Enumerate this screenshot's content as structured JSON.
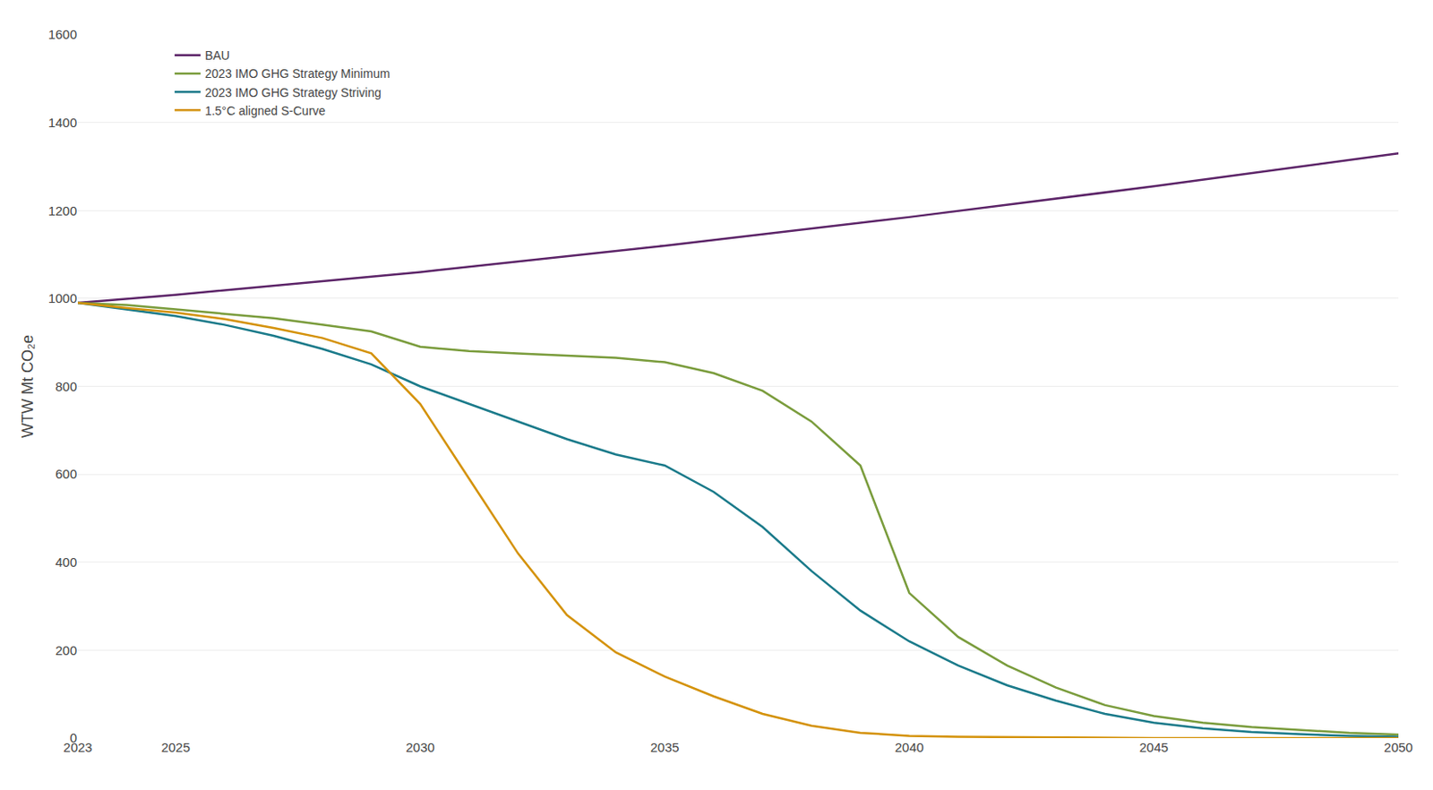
{
  "chart_data": {
    "type": "line",
    "y_label": "WTW Mt CO₂e",
    "xlim": [
      2023,
      2050
    ],
    "ylim": [
      0,
      1600
    ],
    "xticks": [
      2023,
      2025,
      2030,
      2035,
      2040,
      2045,
      2050
    ],
    "yticks": [
      0,
      200,
      400,
      600,
      800,
      1000,
      1200,
      1400,
      1600
    ],
    "grid": "y",
    "legend": "upper left",
    "series": [
      {
        "name": "BAU",
        "color": "#5c2468",
        "x": [
          2023,
          2025,
          2030,
          2035,
          2040,
          2045,
          2050
        ],
        "values": [
          990,
          1008,
          1060,
          1120,
          1185,
          1255,
          1330
        ]
      },
      {
        "name": "2023 IMO GHG Strategy Minimum",
        "color": "#7a9c3c",
        "x": [
          2023,
          2024,
          2025,
          2026,
          2027,
          2028,
          2029,
          2030,
          2031,
          2032,
          2033,
          2034,
          2035,
          2036,
          2037,
          2038,
          2039,
          2040,
          2041,
          2042,
          2043,
          2044,
          2045,
          2046,
          2047,
          2048,
          2049,
          2050
        ],
        "values": [
          990,
          985,
          975,
          965,
          955,
          940,
          925,
          890,
          880,
          875,
          870,
          865,
          855,
          830,
          790,
          720,
          620,
          330,
          230,
          165,
          115,
          75,
          50,
          35,
          25,
          18,
          12,
          8
        ]
      },
      {
        "name": "2023 IMO GHG Strategy Striving",
        "color": "#1a7a8a",
        "x": [
          2023,
          2024,
          2025,
          2026,
          2027,
          2028,
          2029,
          2030,
          2031,
          2032,
          2033,
          2034,
          2035,
          2036,
          2037,
          2038,
          2039,
          2040,
          2041,
          2042,
          2043,
          2044,
          2045,
          2046,
          2047,
          2048,
          2049,
          2050
        ],
        "values": [
          990,
          975,
          960,
          940,
          915,
          885,
          850,
          800,
          760,
          720,
          680,
          645,
          620,
          560,
          480,
          380,
          290,
          220,
          165,
          120,
          85,
          55,
          35,
          22,
          14,
          9,
          5,
          3
        ]
      },
      {
        "name": "1.5°C aligned S-Curve",
        "color": "#d4920a",
        "x": [
          2023,
          2024,
          2025,
          2026,
          2027,
          2028,
          2029,
          2030,
          2031,
          2032,
          2033,
          2034,
          2035,
          2036,
          2037,
          2038,
          2039,
          2040,
          2041,
          2042,
          2043,
          2044,
          2045,
          2050
        ],
        "values": [
          990,
          978,
          968,
          953,
          933,
          910,
          875,
          760,
          590,
          420,
          280,
          195,
          140,
          95,
          55,
          28,
          12,
          5,
          3,
          2,
          1,
          1,
          0,
          0
        ]
      }
    ]
  }
}
